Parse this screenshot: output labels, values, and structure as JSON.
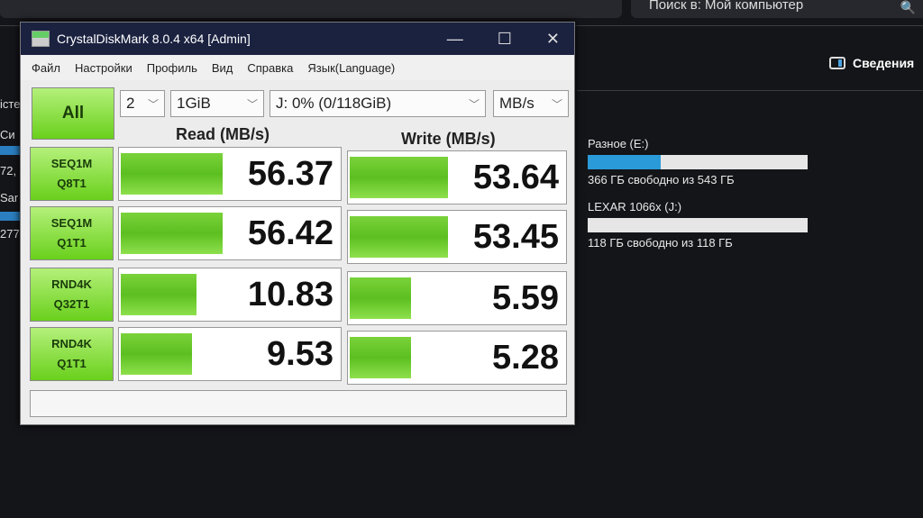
{
  "explorer": {
    "search_placeholder": "Поиск в: Мой компьютер",
    "details_label": "Сведения",
    "left_fragments": [
      "істе",
      "Си",
      "72,",
      "Sar",
      "277"
    ],
    "drives": [
      {
        "name": "Разное (E:)",
        "free": "366 ГБ свободно из 543 ГБ",
        "used_fraction": 0.33
      },
      {
        "name": "LEXAR 1066x (J:)",
        "free": "118 ГБ свободно из 118 ГБ",
        "used_fraction": 0.0
      }
    ]
  },
  "cdm": {
    "title": "CrystalDiskMark 8.0.4 x64 [Admin]",
    "window_controls": [
      "—",
      "☐",
      "✕"
    ],
    "menu": [
      "Файл",
      "Настройки",
      "Профиль",
      "Вид",
      "Справка",
      "Язык(Language)"
    ],
    "all_label": "All",
    "count": "2",
    "size": "1GiB",
    "drive": "J: 0% (0/118GiB)",
    "unit": "MB/s",
    "read_header": "Read (MB/s)",
    "write_header": "Write (MB/s)",
    "tests": [
      {
        "l1": "SEQ1M",
        "l2": "Q8T1",
        "read": "56.37",
        "write": "53.64",
        "rf": 0.46,
        "wf": 0.45
      },
      {
        "l1": "SEQ1M",
        "l2": "Q1T1",
        "read": "56.42",
        "write": "53.45",
        "rf": 0.46,
        "wf": 0.45
      },
      {
        "l1": "RND4K",
        "l2": "Q32T1",
        "read": "10.83",
        "write": "5.59",
        "rf": 0.34,
        "wf": 0.28
      },
      {
        "l1": "RND4K",
        "l2": "Q1T1",
        "read": "9.53",
        "write": "5.28",
        "rf": 0.32,
        "wf": 0.28
      }
    ],
    "status": ""
  }
}
